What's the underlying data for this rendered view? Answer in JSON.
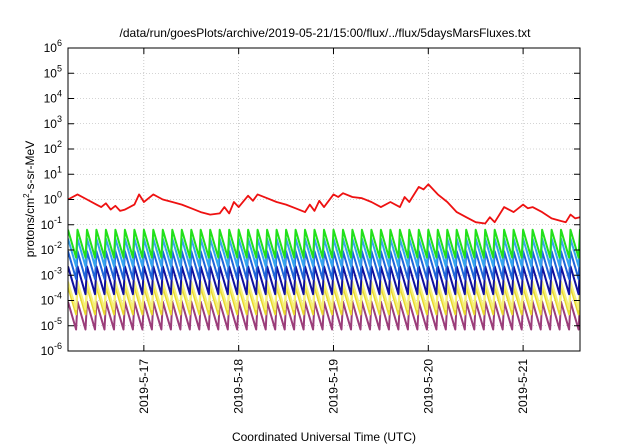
{
  "chart_data": {
    "type": "line",
    "title": "/data/run/goesPlots/archive/2019-05-21/15:00/flux/../flux/5daysMarsFluxes.txt",
    "xlabel": "Coordinated Universal Time (UTC)",
    "ylabel": {
      "prefix": "protons/cm",
      "sup": "2",
      "suffix": "-s-sr-MeV"
    },
    "yscale": "log",
    "ylim": [
      1e-06,
      1000000.0
    ],
    "xlim_days": [
      16.2,
      21.6
    ],
    "grid": true,
    "y_ticks": [
      {
        "base": "10",
        "exp": "-6",
        "value": -6
      },
      {
        "base": "10",
        "exp": "-5",
        "value": -5
      },
      {
        "base": "10",
        "exp": "-4",
        "value": -4
      },
      {
        "base": "10",
        "exp": "-3",
        "value": -3
      },
      {
        "base": "10",
        "exp": "-2",
        "value": -2
      },
      {
        "base": "10",
        "exp": "-1",
        "value": -1
      },
      {
        "base": "10",
        "exp": "0",
        "value": 0
      },
      {
        "base": "10",
        "exp": "1",
        "value": 1
      },
      {
        "base": "10",
        "exp": "2",
        "value": 2
      },
      {
        "base": "10",
        "exp": "3",
        "value": 3
      },
      {
        "base": "10",
        "exp": "4",
        "value": 4
      },
      {
        "base": "10",
        "exp": "5",
        "value": 5
      },
      {
        "base": "10",
        "exp": "6",
        "value": 6
      }
    ],
    "x_ticks": [
      {
        "label": "2019-5-17",
        "day": 17
      },
      {
        "label": "2019-5-18",
        "day": 18
      },
      {
        "label": "2019-5-19",
        "day": 19
      },
      {
        "label": "2019-5-20",
        "day": 20
      },
      {
        "label": "2019-5-21",
        "day": 21
      }
    ],
    "series": [
      {
        "color": "#9b3d7a",
        "sawtooth": true,
        "x": [
          16.2,
          16.35,
          16.5,
          16.65,
          16.8,
          16.95,
          17.1,
          17.25,
          17.4,
          17.55,
          17.7,
          17.85,
          18.0,
          18.15,
          18.3,
          18.45,
          18.6,
          18.75,
          18.9,
          19.05,
          19.2,
          19.35,
          19.5,
          19.65,
          19.8,
          19.95,
          20.1,
          20.25,
          20.4,
          20.55,
          20.7,
          20.85,
          21.0,
          21.15,
          21.3,
          21.45,
          21.6
        ],
        "y": [
          -4.6,
          -4.6,
          -4.6,
          -4.6,
          -4.6,
          -4.6,
          -4.6,
          -4.6,
          -4.6,
          -4.6,
          -4.6,
          -4.6,
          -4.6,
          -4.6,
          -4.6,
          -4.6,
          -4.6,
          -4.6,
          -4.6,
          -4.6,
          -4.6,
          -4.6,
          -4.6,
          -4.6,
          -4.6,
          -4.6,
          -4.6,
          -4.6,
          -4.6,
          -4.6,
          -4.6,
          -4.6,
          -4.6,
          -4.6,
          -4.6,
          -4.6,
          -4.6
        ]
      },
      {
        "color": "#e8d92e",
        "sawtooth": true,
        "x": [
          16.2,
          16.35,
          16.5,
          16.65,
          16.8,
          16.95,
          17.1,
          17.25,
          17.4,
          17.55,
          17.7,
          17.85,
          18.0,
          18.15,
          18.3,
          18.45,
          18.6,
          18.75,
          18.9,
          19.05,
          19.2,
          19.35,
          19.5,
          19.65,
          19.8,
          19.95,
          20.1,
          20.25,
          20.4,
          20.55,
          20.7,
          20.85,
          21.0,
          21.15,
          21.3,
          21.45,
          21.6
        ],
        "y": [
          -4.0,
          -4.0,
          -4.0,
          -4.0,
          -4.0,
          -4.0,
          -4.0,
          -4.0,
          -4.0,
          -4.0,
          -4.0,
          -4.0,
          -4.0,
          -4.0,
          -4.0,
          -4.0,
          -4.0,
          -4.0,
          -4.0,
          -4.0,
          -4.0,
          -4.0,
          -4.0,
          -4.0,
          -4.0,
          -4.0,
          -4.0,
          -4.0,
          -4.0,
          -4.0,
          -4.0,
          -4.0,
          -4.0,
          -4.0,
          -4.0,
          -4.0,
          -4.0
        ]
      },
      {
        "color": "#f5f07a",
        "sawtooth": true,
        "x": [
          16.2,
          16.35,
          16.5,
          16.65,
          16.8,
          16.95,
          17.1,
          17.25,
          17.4,
          17.55,
          17.7,
          17.85,
          18.0,
          18.15,
          18.3,
          18.45,
          18.6,
          18.75,
          18.9,
          19.05,
          19.2,
          19.35,
          19.5,
          19.65,
          19.8,
          19.95,
          20.1,
          20.25,
          20.4,
          20.55,
          20.7,
          20.85,
          21.0,
          21.15,
          21.3,
          21.45,
          21.6
        ],
        "y": [
          -3.8,
          -3.8,
          -3.8,
          -3.8,
          -3.8,
          -3.8,
          -3.8,
          -3.8,
          -3.8,
          -3.8,
          -3.8,
          -3.8,
          -3.8,
          -3.8,
          -3.8,
          -3.8,
          -3.8,
          -3.8,
          -3.8,
          -3.8,
          -3.8,
          -3.8,
          -3.8,
          -3.8,
          -3.8,
          -3.8,
          -3.8,
          -3.8,
          -3.8,
          -3.8,
          -3.8,
          -3.8,
          -3.8,
          -3.8,
          -3.8,
          -3.8,
          -3.8
        ]
      },
      {
        "color": "#11119e",
        "sawtooth": true,
        "x": [
          16.2,
          16.35,
          16.5,
          16.65,
          16.8,
          16.95,
          17.1,
          17.25,
          17.4,
          17.55,
          17.7,
          17.85,
          18.0,
          18.15,
          18.3,
          18.45,
          18.6,
          18.75,
          18.9,
          19.05,
          19.2,
          19.35,
          19.5,
          19.65,
          19.8,
          19.95,
          20.1,
          20.25,
          20.4,
          20.55,
          20.7,
          20.85,
          21.0,
          21.15,
          21.3,
          21.45,
          21.6
        ],
        "y": [
          -3.2,
          -3.2,
          -3.2,
          -3.2,
          -3.2,
          -3.2,
          -3.2,
          -3.2,
          -3.2,
          -3.2,
          -3.2,
          -3.2,
          -3.2,
          -3.2,
          -3.2,
          -3.2,
          -3.2,
          -3.2,
          -3.2,
          -3.2,
          -3.2,
          -3.2,
          -3.2,
          -3.2,
          -3.2,
          -3.2,
          -3.2,
          -3.2,
          -3.2,
          -3.2,
          -3.2,
          -3.2,
          -3.2,
          -3.2,
          -3.2,
          -3.2,
          -3.2
        ]
      },
      {
        "color": "#1f63d8",
        "sawtooth": true,
        "x": [
          16.2,
          16.35,
          16.5,
          16.65,
          16.8,
          16.95,
          17.1,
          17.25,
          17.4,
          17.55,
          17.7,
          17.85,
          18.0,
          18.15,
          18.3,
          18.45,
          18.6,
          18.75,
          18.9,
          19.05,
          19.2,
          19.35,
          19.5,
          19.65,
          19.8,
          19.95,
          20.1,
          20.25,
          20.4,
          20.55,
          20.7,
          20.85,
          21.0,
          21.15,
          21.3,
          21.45,
          21.6
        ],
        "y": [
          -2.6,
          -2.6,
          -2.6,
          -2.6,
          -2.6,
          -2.6,
          -2.6,
          -2.6,
          -2.6,
          -2.6,
          -2.6,
          -2.6,
          -2.6,
          -2.6,
          -2.6,
          -2.6,
          -2.6,
          -2.6,
          -2.6,
          -2.6,
          -2.6,
          -2.6,
          -2.6,
          -2.6,
          -2.6,
          -2.6,
          -2.6,
          -2.6,
          -2.6,
          -2.6,
          -2.6,
          -2.6,
          -2.6,
          -2.6,
          -2.6,
          -2.6,
          -2.6
        ]
      },
      {
        "color": "#35a4ee",
        "sawtooth": true,
        "x": [
          16.2,
          16.35,
          16.5,
          16.65,
          16.8,
          16.95,
          17.1,
          17.25,
          17.4,
          17.55,
          17.7,
          17.85,
          18.0,
          18.15,
          18.3,
          18.45,
          18.6,
          18.75,
          18.9,
          19.05,
          19.2,
          19.35,
          19.5,
          19.65,
          19.8,
          19.95,
          20.1,
          20.25,
          20.4,
          20.55,
          20.7,
          20.85,
          21.0,
          21.15,
          21.3,
          21.45,
          21.6
        ],
        "y": [
          -2.1,
          -2.1,
          -2.1,
          -2.1,
          -2.1,
          -2.1,
          -2.1,
          -2.1,
          -2.1,
          -2.1,
          -2.1,
          -2.1,
          -2.1,
          -2.1,
          -2.1,
          -2.1,
          -2.1,
          -2.1,
          -2.1,
          -2.1,
          -2.1,
          -2.1,
          -2.1,
          -2.1,
          -2.1,
          -2.1,
          -2.1,
          -2.1,
          -2.1,
          -2.1,
          -2.1,
          -2.1,
          -2.1,
          -2.1,
          -2.1,
          -2.1,
          -2.1
        ]
      },
      {
        "color": "#22e01a",
        "sawtooth": true,
        "x": [
          16.2,
          16.35,
          16.5,
          16.65,
          16.8,
          16.95,
          17.1,
          17.25,
          17.4,
          17.55,
          17.7,
          17.85,
          18.0,
          18.15,
          18.3,
          18.45,
          18.6,
          18.75,
          18.9,
          19.05,
          19.2,
          19.35,
          19.5,
          19.65,
          19.8,
          19.95,
          20.1,
          20.25,
          20.4,
          20.55,
          20.7,
          20.85,
          21.0,
          21.15,
          21.3,
          21.45,
          21.6
        ],
        "y": [
          -1.75,
          -1.75,
          -1.75,
          -1.75,
          -1.75,
          -1.75,
          -1.75,
          -1.75,
          -1.75,
          -1.75,
          -1.75,
          -1.75,
          -1.75,
          -1.75,
          -1.75,
          -1.75,
          -1.75,
          -1.75,
          -1.75,
          -1.75,
          -1.75,
          -1.75,
          -1.75,
          -1.75,
          -1.75,
          -1.75,
          -1.75,
          -1.75,
          -1.75,
          -1.75,
          -1.75,
          -1.75,
          -1.75,
          -1.75,
          -1.75,
          -1.75,
          -1.75
        ]
      },
      {
        "color": "#ee1111",
        "sawtooth": false,
        "x": [
          16.2,
          16.3,
          16.4,
          16.5,
          16.55,
          16.6,
          16.65,
          16.7,
          16.75,
          16.8,
          16.9,
          16.95,
          17.0,
          17.1,
          17.15,
          17.2,
          17.3,
          17.4,
          17.5,
          17.6,
          17.7,
          17.8,
          17.85,
          17.9,
          17.95,
          18.0,
          18.1,
          18.15,
          18.2,
          18.3,
          18.4,
          18.5,
          18.6,
          18.7,
          18.75,
          18.8,
          18.85,
          18.9,
          19.0,
          19.05,
          19.1,
          19.2,
          19.3,
          19.4,
          19.5,
          19.6,
          19.7,
          19.75,
          19.8,
          19.9,
          19.95,
          20.0,
          20.1,
          20.2,
          20.3,
          20.4,
          20.5,
          20.6,
          20.65,
          20.7,
          20.8,
          20.9,
          21.0,
          21.05,
          21.1,
          21.2,
          21.3,
          21.4,
          21.45,
          21.5,
          21.55,
          21.6
        ],
        "y": [
          0.0,
          0.2,
          0.0,
          -0.2,
          -0.3,
          -0.15,
          -0.4,
          -0.25,
          -0.45,
          -0.4,
          -0.2,
          0.2,
          -0.1,
          0.2,
          0.1,
          0.0,
          -0.1,
          -0.2,
          -0.35,
          -0.5,
          -0.6,
          -0.55,
          -0.3,
          -0.55,
          -0.1,
          -0.3,
          0.15,
          -0.05,
          0.2,
          0.05,
          -0.1,
          -0.2,
          -0.35,
          -0.5,
          -0.2,
          -0.45,
          -0.05,
          -0.3,
          0.2,
          0.1,
          0.25,
          0.1,
          0.05,
          -0.1,
          -0.3,
          -0.1,
          -0.3,
          0.1,
          -0.1,
          0.5,
          0.4,
          0.6,
          0.2,
          -0.1,
          -0.5,
          -0.7,
          -0.9,
          -0.95,
          -0.7,
          -0.9,
          -0.3,
          -0.5,
          -0.2,
          -0.35,
          -0.3,
          -0.5,
          -0.75,
          -0.85,
          -0.9,
          -0.6,
          -0.75,
          -0.7
        ]
      }
    ]
  }
}
